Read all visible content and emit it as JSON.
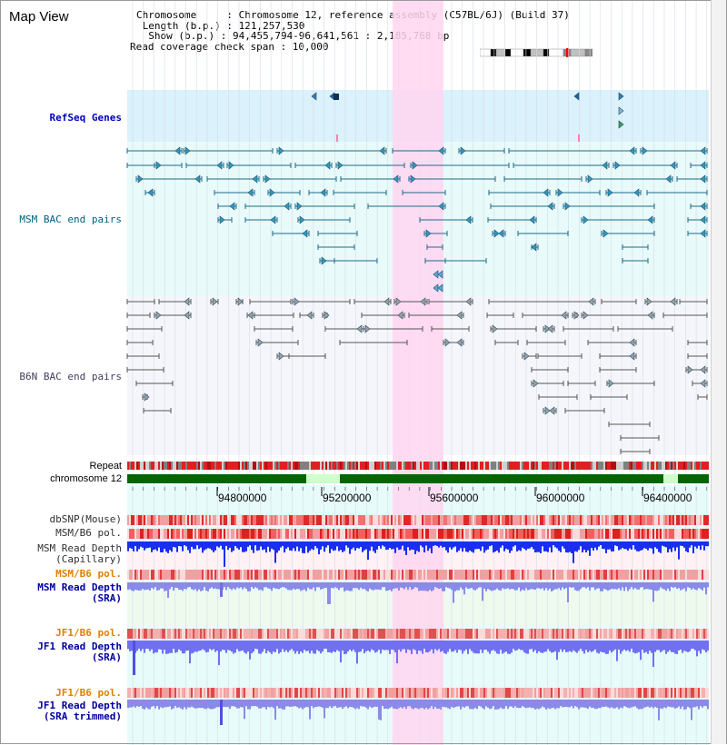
{
  "title": "Map View",
  "info": {
    "chromosome_line": "Chromosome     : Chromosome 12, reference assembly (C57BL/6J) (Build 37)",
    "length_line": " Length (b.p.) : 121,257,530",
    "show_line": "  Show (b.p.) : 94,455,794-96,641,561 : 2,185,768 bp",
    "span_line": "Read coverage check span : 10,000"
  },
  "tracks": {
    "refseq": "RefSeq Genes",
    "msm_bac": "MSM BAC end pairs",
    "b6n_bac": "B6N BAC end pairs",
    "repeat": "Repeat",
    "chromosome": "chromosome 12",
    "dbsnp": "dbSNP(Mouse)",
    "msm_b6_pol_1": "MSM/B6 pol.",
    "msm_depth_cap": "MSM Read Depth\n(Capillary)",
    "msm_b6_pol_2": "MSM/B6 pol.",
    "msm_depth_sra": "MSM Read Depth\n(SRA)",
    "jf1_b6_pol_1": "JF1/B6 pol.",
    "jf1_depth_sra": "JF1 Read Depth\n(SRA)",
    "jf1_b6_pol_2": "JF1/B6 pol.",
    "jf1_depth_trim": "JF1 Read Depth\n(SRA trimmed)"
  },
  "axis": {
    "ticks": [
      "94800000",
      "95200000",
      "95600000",
      "96000000",
      "96400000"
    ]
  },
  "colors": {
    "refseq_label": "#0000c0",
    "msm_label": "#006080",
    "b6n_label": "#404060",
    "orange_label": "#e08000",
    "blue_label": "#0000a0",
    "highlight": "#ffd6f0"
  }
}
